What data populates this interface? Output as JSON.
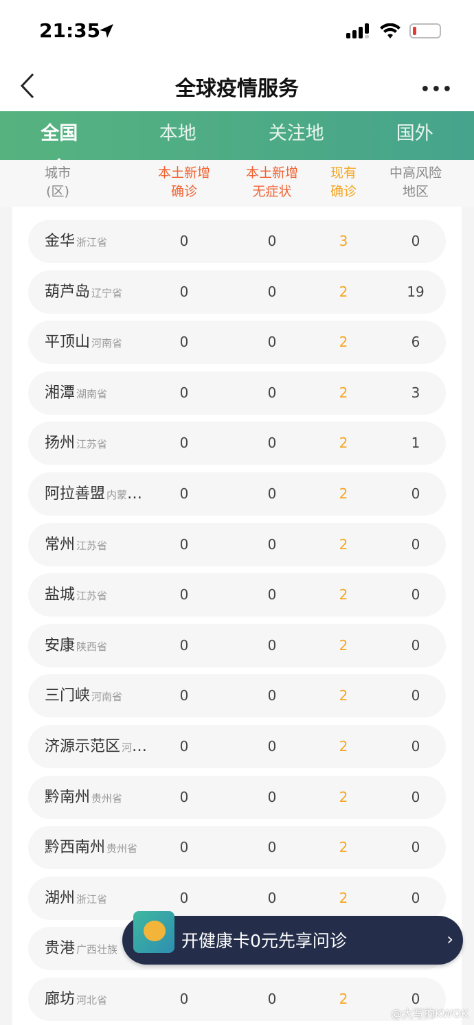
{
  "status": {
    "time": "21:35"
  },
  "nav": {
    "title": "全球疫情服务",
    "more": "•••"
  },
  "tabs": [
    {
      "label": "全国",
      "active": true
    },
    {
      "label": "本地"
    },
    {
      "label": "关注地"
    },
    {
      "label": "国外"
    }
  ],
  "columns": [
    {
      "l1": "城市",
      "l2": "(区)",
      "color": "#888888"
    },
    {
      "l1": "本土新增",
      "l2": "确诊",
      "color": "#f06434"
    },
    {
      "l1": "本土新增",
      "l2": "无症状",
      "color": "#f06434"
    },
    {
      "l1": "现有",
      "l2": "确诊",
      "color": "#f5a623"
    },
    {
      "l1": "中高风险",
      "l2": "地区",
      "color": "#888888"
    }
  ],
  "rows": [
    {
      "city": "金华",
      "prov": "浙江省",
      "a": "0",
      "b": "0",
      "c": "3",
      "d": "0"
    },
    {
      "city": "葫芦岛",
      "prov": "辽宁省",
      "a": "0",
      "b": "0",
      "c": "2",
      "d": "19"
    },
    {
      "city": "平顶山",
      "prov": "河南省",
      "a": "0",
      "b": "0",
      "c": "2",
      "d": "6"
    },
    {
      "city": "湘潭",
      "prov": "湖南省",
      "a": "0",
      "b": "0",
      "c": "2",
      "d": "3"
    },
    {
      "city": "扬州",
      "prov": "江苏省",
      "a": "0",
      "b": "0",
      "c": "2",
      "d": "1"
    },
    {
      "city": "阿拉善盟",
      "prov": "内蒙古自治区",
      "a": "0",
      "b": "0",
      "c": "2",
      "d": "0"
    },
    {
      "city": "常州",
      "prov": "江苏省",
      "a": "0",
      "b": "0",
      "c": "2",
      "d": "0"
    },
    {
      "city": "盐城",
      "prov": "江苏省",
      "a": "0",
      "b": "0",
      "c": "2",
      "d": "0"
    },
    {
      "city": "安康",
      "prov": "陕西省",
      "a": "0",
      "b": "0",
      "c": "2",
      "d": "0"
    },
    {
      "city": "三门峡",
      "prov": "河南省",
      "a": "0",
      "b": "0",
      "c": "2",
      "d": "0"
    },
    {
      "city": "济源示范区",
      "prov": "河南省",
      "a": "0",
      "b": "0",
      "c": "2",
      "d": "0"
    },
    {
      "city": "黔南州",
      "prov": "贵州省",
      "a": "0",
      "b": "0",
      "c": "2",
      "d": "0"
    },
    {
      "city": "黔西南州",
      "prov": "贵州省",
      "a": "0",
      "b": "0",
      "c": "2",
      "d": "0"
    },
    {
      "city": "湖州",
      "prov": "浙江省",
      "a": "0",
      "b": "0",
      "c": "2",
      "d": "0"
    },
    {
      "city": "贵港",
      "prov": "广西壮族",
      "a": "",
      "b": "",
      "c": "",
      "d": ""
    },
    {
      "city": "廊坊",
      "prov": "河北省",
      "a": "0",
      "b": "0",
      "c": "2",
      "d": "0"
    }
  ],
  "banner": {
    "text": "开健康卡0元先享问诊",
    "chevron": "›"
  },
  "watermark": "@大写的KWOK"
}
